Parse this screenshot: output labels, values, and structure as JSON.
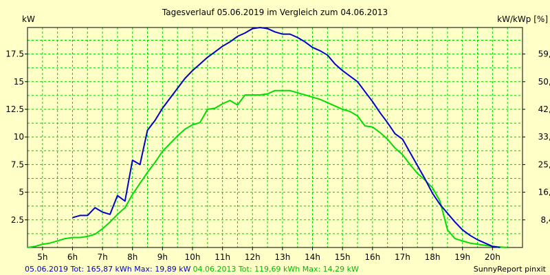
{
  "chart_data": {
    "type": "line",
    "title": "Tagesverlauf 05.06.2019 im Vergleich zum 04.06.2013",
    "ylabel_left": "kW",
    "ylabel_right": "kW/kWp [%]",
    "x_ticks": [
      "5h",
      "6h",
      "7h",
      "8h",
      "9h",
      "10h",
      "11h",
      "12h",
      "13h",
      "14h",
      "15h",
      "16h",
      "17h",
      "18h",
      "19h",
      "20h"
    ],
    "xlim": [
      4.5,
      21
    ],
    "ylim": [
      0,
      19.9
    ],
    "y_ticks_left": [
      "2.5",
      "5",
      "7.5",
      "10",
      "12.5",
      "15",
      "17.5"
    ],
    "y_ticks_right": [
      "8,4",
      "16,9",
      "25,3",
      "33,7",
      "42,2",
      "50,6",
      "59,0"
    ],
    "grid": true,
    "series": [
      {
        "name": "05.06.2019",
        "color": "#0000cc",
        "x": [
          6.0,
          6.25,
          6.5,
          6.75,
          7.0,
          7.25,
          7.5,
          7.75,
          8.0,
          8.25,
          8.5,
          8.75,
          9.0,
          9.25,
          9.5,
          9.75,
          10.0,
          10.25,
          10.5,
          10.75,
          11.0,
          11.25,
          11.5,
          11.75,
          12.0,
          12.25,
          12.5,
          12.75,
          13.0,
          13.25,
          13.5,
          13.75,
          14.0,
          14.25,
          14.5,
          14.75,
          15.0,
          15.25,
          15.5,
          15.75,
          16.0,
          16.25,
          16.5,
          16.75,
          17.0,
          17.25,
          17.5,
          17.75,
          18.0,
          18.25,
          18.5,
          18.75,
          19.0,
          19.25,
          19.5,
          19.75,
          20.0,
          20.25
        ],
        "values": [
          2.7,
          2.9,
          2.9,
          3.6,
          3.2,
          3.0,
          4.7,
          4.2,
          7.9,
          7.5,
          10.6,
          11.5,
          12.6,
          13.5,
          14.4,
          15.3,
          16.0,
          16.6,
          17.2,
          17.7,
          18.2,
          18.6,
          19.1,
          19.4,
          19.8,
          19.9,
          19.8,
          19.5,
          19.3,
          19.3,
          19.0,
          18.6,
          18.1,
          17.8,
          17.4,
          16.6,
          16.0,
          15.5,
          15.0,
          14.1,
          13.2,
          12.2,
          11.3,
          10.3,
          9.8,
          8.6,
          7.4,
          6.2,
          4.9,
          3.9,
          3.1,
          2.3,
          1.6,
          1.1,
          0.7,
          0.4,
          0.1,
          0.0
        ]
      },
      {
        "name": "04.06.2013",
        "color": "#00dd00",
        "x": [
          4.5,
          4.75,
          5.0,
          5.25,
          5.5,
          5.75,
          6.0,
          6.25,
          6.5,
          6.75,
          7.0,
          7.25,
          7.5,
          7.75,
          8.0,
          8.25,
          8.5,
          8.75,
          9.0,
          9.25,
          9.5,
          9.75,
          10.0,
          10.25,
          10.5,
          10.75,
          11.0,
          11.25,
          11.5,
          11.75,
          12.0,
          12.25,
          12.5,
          12.75,
          13.0,
          13.25,
          13.5,
          13.75,
          14.0,
          14.25,
          14.5,
          14.75,
          15.0,
          15.25,
          15.5,
          15.75,
          16.0,
          16.25,
          16.5,
          16.75,
          17.0,
          17.25,
          17.5,
          17.75,
          18.0,
          18.25,
          18.5,
          18.75,
          19.0,
          19.25,
          19.5,
          19.75,
          20.0,
          20.25,
          20.5
        ],
        "values": [
          0.0,
          0.1,
          0.3,
          0.4,
          0.6,
          0.8,
          0.9,
          0.9,
          1.0,
          1.2,
          1.7,
          2.3,
          3.0,
          3.6,
          4.8,
          5.8,
          6.8,
          7.7,
          8.7,
          9.4,
          10.1,
          10.7,
          11.1,
          11.3,
          12.5,
          12.6,
          13.0,
          13.3,
          12.9,
          13.8,
          13.8,
          13.8,
          13.9,
          14.2,
          14.2,
          14.2,
          14.0,
          13.8,
          13.6,
          13.4,
          13.1,
          12.8,
          12.5,
          12.3,
          11.9,
          11.0,
          10.9,
          10.4,
          9.8,
          9.0,
          8.4,
          7.5,
          6.7,
          6.1,
          5.4,
          4.2,
          1.6,
          0.8,
          0.6,
          0.4,
          0.3,
          0.2,
          0.1,
          0.05,
          0.0
        ]
      }
    ]
  },
  "footer": {
    "s1_label": "05.06.2019 Tot: 165,87 kWh Max: 19,89 kW",
    "s2_label": "04.06.2013 Tot: 119,69 kWh Max: 14,29 kW",
    "credit": "SunnyReport pinxit"
  }
}
